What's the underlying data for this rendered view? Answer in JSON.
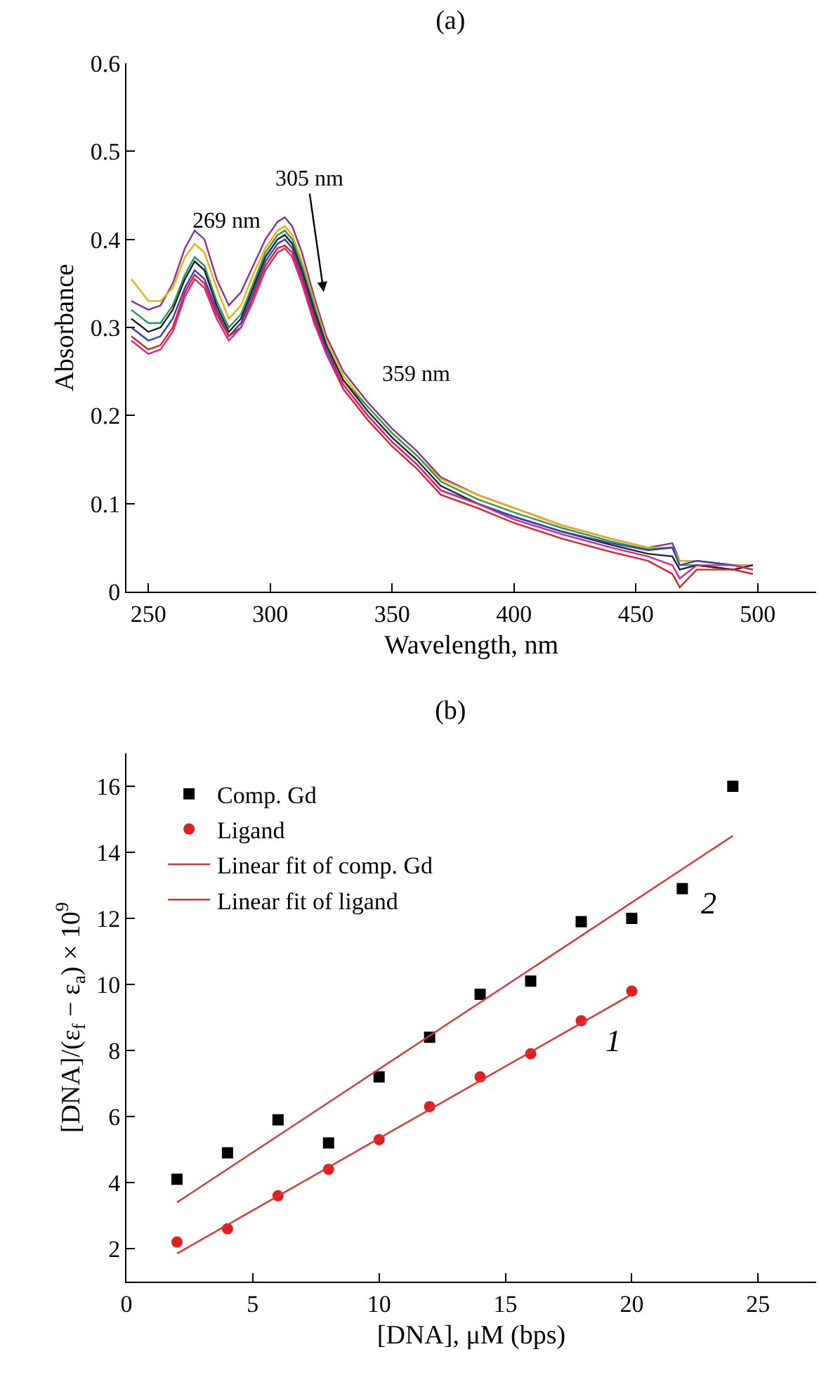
{
  "chart_data": [
    {
      "type": "line",
      "title": "(a)",
      "xlabel": "Wavelength, nm",
      "ylabel": "Absorbance",
      "x": [
        243,
        250,
        255,
        260,
        265,
        269,
        273,
        278,
        283,
        288,
        293,
        298,
        303,
        306,
        309,
        313,
        318,
        323,
        330,
        340,
        350,
        360,
        370,
        385,
        400,
        420,
        440,
        455,
        465,
        468,
        475,
        490,
        498
      ],
      "series": [
        {
          "color": "#8b2f9b",
          "values": [
            0.33,
            0.32,
            0.325,
            0.35,
            0.39,
            0.41,
            0.4,
            0.355,
            0.325,
            0.34,
            0.37,
            0.4,
            0.42,
            0.425,
            0.415,
            0.385,
            0.335,
            0.29,
            0.25,
            0.215,
            0.185,
            0.16,
            0.13,
            0.11,
            0.095,
            0.075,
            0.06,
            0.05,
            0.055,
            0.035,
            0.035,
            0.03,
            0.03
          ]
        },
        {
          "color": "#f0b000",
          "values": [
            0.355,
            0.33,
            0.33,
            0.345,
            0.38,
            0.395,
            0.385,
            0.345,
            0.31,
            0.325,
            0.36,
            0.39,
            0.41,
            0.415,
            0.405,
            0.375,
            0.33,
            0.285,
            0.245,
            0.21,
            0.18,
            0.155,
            0.128,
            0.11,
            0.095,
            0.075,
            0.06,
            0.05,
            0.05,
            0.035,
            0.035,
            0.03,
            0.03
          ]
        },
        {
          "color": "#2a9a5a",
          "values": [
            0.32,
            0.305,
            0.305,
            0.325,
            0.36,
            0.38,
            0.37,
            0.33,
            0.3,
            0.315,
            0.35,
            0.385,
            0.405,
            0.41,
            0.4,
            0.37,
            0.325,
            0.28,
            0.24,
            0.21,
            0.18,
            0.155,
            0.125,
            0.105,
            0.09,
            0.072,
            0.057,
            0.048,
            0.05,
            0.03,
            0.03,
            0.025,
            0.02
          ]
        },
        {
          "color": "#222222",
          "values": [
            0.31,
            0.295,
            0.3,
            0.32,
            0.355,
            0.375,
            0.365,
            0.325,
            0.295,
            0.31,
            0.345,
            0.38,
            0.4,
            0.405,
            0.395,
            0.365,
            0.32,
            0.28,
            0.24,
            0.205,
            0.175,
            0.15,
            0.12,
            0.1,
            0.085,
            0.068,
            0.053,
            0.043,
            0.04,
            0.025,
            0.03,
            0.025,
            0.03
          ]
        },
        {
          "color": "#3040c0",
          "values": [
            0.3,
            0.285,
            0.29,
            0.31,
            0.345,
            0.365,
            0.355,
            0.32,
            0.29,
            0.305,
            0.34,
            0.375,
            0.395,
            0.4,
            0.39,
            0.36,
            0.315,
            0.275,
            0.235,
            0.2,
            0.17,
            0.145,
            0.115,
            0.1,
            0.085,
            0.068,
            0.055,
            0.047,
            0.05,
            0.03,
            0.035,
            0.03,
            0.025
          ]
        },
        {
          "color": "#e02020",
          "values": [
            0.29,
            0.275,
            0.28,
            0.3,
            0.34,
            0.36,
            0.35,
            0.315,
            0.29,
            0.3,
            0.335,
            0.37,
            0.39,
            0.393,
            0.385,
            0.355,
            0.31,
            0.27,
            0.23,
            0.195,
            0.165,
            0.14,
            0.11,
            0.095,
            0.078,
            0.06,
            0.045,
            0.035,
            0.02,
            0.005,
            0.025,
            0.025,
            0.02
          ]
        },
        {
          "color": "#e0208a",
          "values": [
            0.285,
            0.27,
            0.275,
            0.295,
            0.335,
            0.355,
            0.345,
            0.31,
            0.285,
            0.3,
            0.33,
            0.365,
            0.385,
            0.39,
            0.38,
            0.35,
            0.305,
            0.27,
            0.235,
            0.2,
            0.17,
            0.145,
            0.115,
            0.1,
            0.082,
            0.065,
            0.05,
            0.04,
            0.03,
            0.015,
            0.03,
            0.03,
            0.025
          ]
        }
      ],
      "annotations": [
        "269 nm",
        "305 nm",
        "359 nm"
      ],
      "xlim": [
        241,
        524
      ],
      "xticks": [
        250,
        300,
        350,
        400,
        450,
        500
      ],
      "ylim": [
        0,
        0.6
      ],
      "yticks": [
        0,
        0.1,
        0.2,
        0.3,
        0.4,
        0.5,
        0.6
      ],
      "grid": false
    },
    {
      "type": "scatter",
      "title": "(b)",
      "xlabel": "[DNA], μM (bps)",
      "ylabel": "[DNA]/(ε$_{f}$ − ε$_{a}$) × 10$^{9}$",
      "series": [
        {
          "name": "Comp. Gd",
          "color": "#000000",
          "marker": "square",
          "x": [
            2,
            4,
            6,
            8,
            10,
            12,
            14,
            16,
            18,
            20,
            22,
            24
          ],
          "values": [
            4.1,
            4.9,
            5.9,
            5.2,
            7.2,
            8.4,
            9.7,
            10.1,
            11.9,
            12.0,
            12.9,
            16.0
          ]
        },
        {
          "name": "Ligand",
          "color": "#e02020",
          "marker": "circle",
          "x": [
            2,
            4,
            6,
            8,
            10,
            12,
            14,
            16,
            18,
            20
          ],
          "values": [
            2.2,
            2.6,
            3.6,
            4.4,
            5.3,
            6.3,
            7.2,
            7.9,
            8.9,
            9.8
          ]
        },
        {
          "name": "Linear fit of comp. Gd",
          "type": "line",
          "color": "#e03030",
          "x": [
            2,
            24
          ],
          "values": [
            3.4,
            14.5
          ]
        },
        {
          "name": "Linear fit of ligand",
          "type": "line",
          "color": "#e03030",
          "x": [
            2,
            20
          ],
          "values": [
            1.85,
            9.7
          ]
        }
      ],
      "annotations": [
        "2",
        "1"
      ],
      "xlim": [
        0,
        27.3
      ],
      "xticks": [
        0,
        5,
        10,
        15,
        20,
        25
      ],
      "ylim": [
        1,
        17
      ],
      "yticks": [
        2,
        4,
        6,
        8,
        10,
        12,
        14,
        16
      ],
      "grid": false,
      "legend": "top left"
    }
  ]
}
